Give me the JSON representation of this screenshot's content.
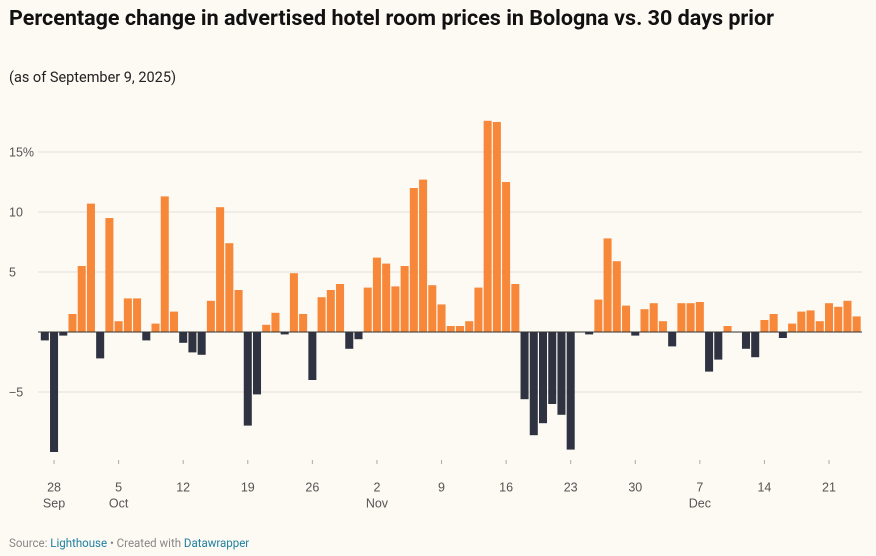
{
  "chart_data": {
    "type": "bar",
    "title": "Percentage change in advertised hotel room prices in Bologna vs. 30 days prior",
    "subtitle": "(as of September 9, 2025)",
    "source_label": "Source: ",
    "source": "Lighthouse",
    "credit_label": " • Created with ",
    "credit": "Datawrapper",
    "categories": [
      null,
      "28",
      null,
      null,
      null,
      null,
      null,
      null,
      "5",
      null,
      null,
      null,
      null,
      null,
      null,
      "12",
      null,
      null,
      null,
      null,
      null,
      null,
      "19",
      null,
      null,
      null,
      null,
      null,
      null,
      "26",
      null,
      null,
      null,
      null,
      null,
      null,
      "2",
      null,
      null,
      null,
      null,
      null,
      null,
      "9",
      null,
      null,
      null,
      null,
      null,
      null,
      "16",
      null,
      null,
      null,
      null,
      null,
      null,
      "23",
      null,
      null,
      null,
      null,
      null,
      null,
      "30",
      null,
      null,
      null,
      null,
      null,
      null,
      "7",
      null,
      null,
      null,
      null,
      null,
      null,
      "14",
      null,
      null,
      null,
      null,
      null,
      null,
      "21",
      null,
      null,
      null
    ],
    "category_months": [
      null,
      "Sep",
      null,
      null,
      null,
      null,
      null,
      null,
      "Oct",
      null,
      null,
      null,
      null,
      null,
      null,
      null,
      null,
      null,
      null,
      null,
      null,
      null,
      null,
      null,
      null,
      null,
      null,
      null,
      null,
      null,
      null,
      null,
      null,
      null,
      null,
      null,
      "Nov",
      null,
      null,
      null,
      null,
      null,
      null,
      null,
      null,
      null,
      null,
      null,
      null,
      null,
      null,
      null,
      null,
      null,
      null,
      null,
      null,
      null,
      null,
      null,
      null,
      null,
      null,
      null,
      null,
      null,
      null,
      null,
      null,
      null,
      null,
      "Dec",
      null,
      null,
      null,
      null,
      null,
      null,
      null,
      null,
      null,
      null,
      null,
      null,
      null,
      null,
      null,
      null,
      null
    ],
    "values": [
      -0.7,
      -10,
      -0.3,
      1.5,
      5.5,
      10.7,
      -2.2,
      9.5,
      0.9,
      2.8,
      2.8,
      -0.7,
      0.7,
      11.3,
      1.7,
      -0.9,
      -1.7,
      -1.9,
      2.6,
      10.4,
      7.4,
      3.5,
      -7.8,
      -5.2,
      0.6,
      1.6,
      -0.2,
      4.9,
      1.5,
      -4,
      2.9,
      3.5,
      4.0,
      -1.4,
      -0.6,
      3.7,
      6.2,
      5.7,
      3.8,
      5.5,
      12.0,
      12.7,
      3.9,
      2.3,
      0.5,
      0.5,
      0.9,
      3.7,
      17.6,
      17.5,
      12.5,
      4.0,
      -5.6,
      -8.6,
      -7.6,
      -6.0,
      -6.9,
      -9.8,
      0,
      -0.2,
      2.7,
      7.8,
      5.9,
      2.2,
      -0.3,
      1.9,
      2.4,
      0.9,
      -1.2,
      2.4,
      2.4,
      2.5,
      -3.3,
      -2.3,
      0.5,
      0,
      -1.4,
      -2.1,
      1.0,
      1.5,
      -0.5,
      0.7,
      1.7,
      1.8,
      0.9,
      2.4,
      2.1,
      2.6,
      1.3
    ],
    "positive_color": "#f7883a",
    "negative_color": "#2f3241",
    "ylim": [
      -10.5,
      18
    ],
    "yticks": [
      {
        "value": -5,
        "label": "−5"
      },
      5,
      10,
      {
        "value": 15,
        "label": "15%"
      }
    ],
    "grid": true
  }
}
